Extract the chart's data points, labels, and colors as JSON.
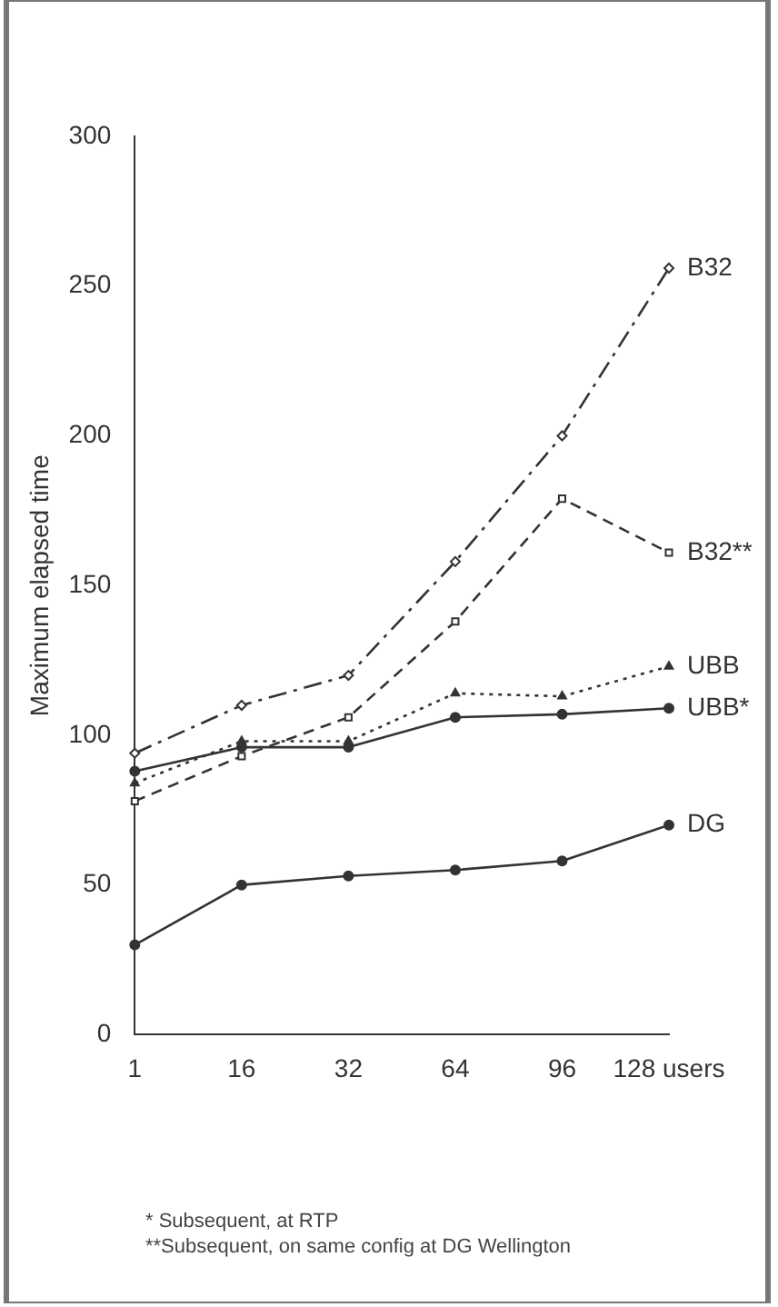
{
  "chart_data": {
    "type": "line",
    "ylabel": "Maximum elapsed time",
    "categories": [
      "1",
      "16",
      "32",
      "64",
      "96",
      "128 users"
    ],
    "series": [
      {
        "name": "B32",
        "color": "#333333",
        "values": [
          94,
          110,
          120,
          158,
          200,
          256
        ],
        "marker": "diamond",
        "line_style": "dashdot"
      },
      {
        "name": "B32**",
        "color": "#333333",
        "values": [
          78,
          93,
          106,
          138,
          179,
          161
        ],
        "marker": "square",
        "line_style": "dashed"
      },
      {
        "name": "UBB",
        "color": "#333333",
        "values": [
          84,
          98,
          98,
          114,
          113,
          123
        ],
        "marker": "triangle",
        "line_style": "dotted"
      },
      {
        "name": "UBB*",
        "color": "#333333",
        "values": [
          88,
          96,
          96,
          106,
          107,
          109
        ],
        "marker": "circle",
        "line_style": "solid"
      },
      {
        "name": "DG",
        "color": "#333333",
        "values": [
          30,
          50,
          53,
          55,
          58,
          70
        ],
        "marker": "circle",
        "line_style": "solid"
      }
    ],
    "ylim": [
      0,
      300
    ],
    "yticks": [
      0,
      50,
      100,
      150,
      200,
      250,
      300
    ],
    "grid": false,
    "legend": false,
    "annotations": [
      "* Subsequent, at RTP",
      "**Subsequent, on same config at DG Wellington"
    ]
  }
}
